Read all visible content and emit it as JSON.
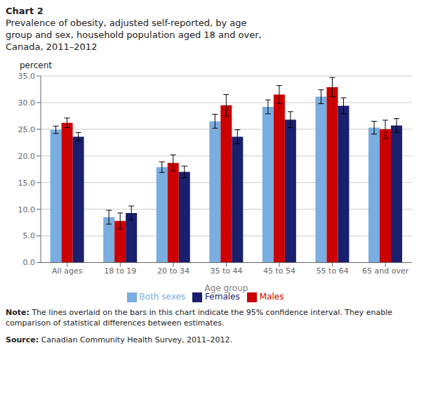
{
  "chart_data": {
    "type": "bar",
    "title": "Chart 2",
    "subtitle": "Prevalence of obesity, adjusted self-reported, by age\ngroup and sex, household population aged 18 and over,\nCanada, 2011–2012",
    "ylabel": "percent",
    "xlabel": "Age group",
    "categories": [
      "All ages",
      "18 to 19",
      "20 to 34",
      "35 to 44",
      "45 to 54",
      "55 to 64",
      "65 and over"
    ],
    "series": [
      {
        "name": "Both sexes",
        "color": "#7aade0",
        "values": [
          24.9,
          8.5,
          17.9,
          26.5,
          29.2,
          31.1,
          25.3
        ],
        "errors": [
          0.7,
          1.3,
          1.0,
          1.3,
          1.3,
          1.3,
          1.2
        ]
      },
      {
        "name": "Males",
        "color": "#cc0000",
        "values": [
          26.2,
          7.8,
          18.7,
          29.5,
          31.5,
          32.9,
          25.0
        ],
        "errors": [
          0.9,
          1.5,
          1.5,
          2.0,
          1.7,
          1.8,
          1.7
        ]
      },
      {
        "name": "Females",
        "color": "#1a1f6e",
        "values": [
          23.6,
          9.3,
          17.0,
          23.6,
          26.8,
          29.4,
          25.7
        ],
        "errors": [
          0.8,
          1.3,
          1.1,
          1.3,
          1.5,
          1.5,
          1.3
        ]
      }
    ],
    "ylim": [
      0,
      35
    ],
    "yticks": [
      {
        "value": 0,
        "label": "0.0"
      },
      {
        "value": 5,
        "label": "5.0"
      },
      {
        "value": 10,
        "label": "10.0"
      },
      {
        "value": 15,
        "label": "15.0"
      },
      {
        "value": 20,
        "label": "20.0"
      },
      {
        "value": 25,
        "label": "25.0"
      },
      {
        "value": 30,
        "label": "30.0"
      },
      {
        "value": 35,
        "label": "35.0"
      }
    ],
    "grid": true,
    "legend": "bottom",
    "annotations": [
      {
        "bold": "Note:",
        "text": "The lines overlaid on the bars in this chart indicate the 95% confidence interval. They enable\ncomparison of statistical differences between estimates."
      },
      {
        "bold": "Source:",
        "text": "Canadian Community Health Survey, 2011–2012."
      }
    ]
  }
}
